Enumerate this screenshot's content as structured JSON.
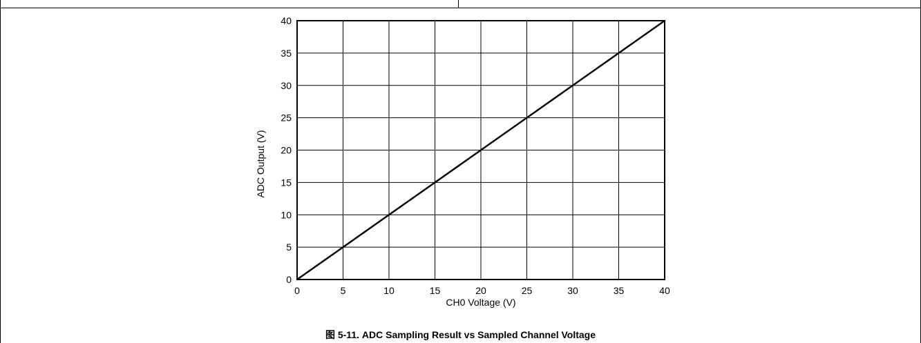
{
  "chart_data": {
    "type": "line",
    "xlabel": "CH0 Voltage (V)",
    "ylabel": "ADC Output (V)",
    "xlim": [
      0,
      40
    ],
    "ylim": [
      0,
      40
    ],
    "x_ticks": [
      0,
      5,
      10,
      15,
      20,
      25,
      30,
      35,
      40
    ],
    "y_ticks": [
      0,
      5,
      10,
      15,
      20,
      25,
      30,
      35,
      40
    ],
    "grid": true,
    "series": [
      {
        "x": [
          0,
          5,
          10,
          15,
          20,
          25,
          30,
          35,
          40
        ],
        "y": [
          0,
          5,
          10,
          15,
          20,
          25,
          30,
          35,
          40
        ],
        "color": "#000000"
      }
    ]
  },
  "caption": "图 5-11. ADC Sampling Result vs Sampled Channel Voltage"
}
